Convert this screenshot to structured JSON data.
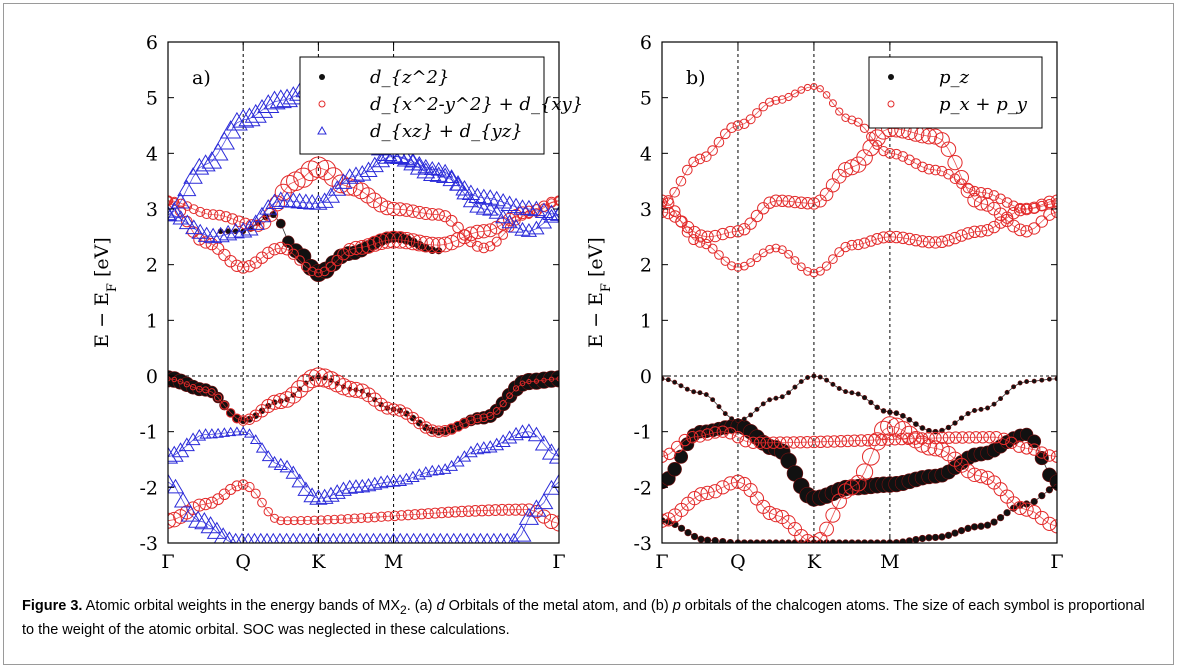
{
  "chart_data": [
    {
      "type": "scatter",
      "panel_label": "a)",
      "ylabel": "E − E_F [eV]",
      "ylim": [
        -3,
        6
      ],
      "yticks": [
        "6",
        "5",
        "4",
        "3",
        "2",
        "1",
        "0",
        "-1",
        "-2",
        "-3"
      ],
      "xticks": [
        "Γ",
        "Q",
        "K",
        "M",
        "Γ"
      ],
      "xtick_positions": [
        0,
        0.5,
        1,
        1.5,
        2.6
      ],
      "legend_position": "top-right",
      "series": [
        {
          "name": "d_{z^2}",
          "marker": "filled-circle",
          "color": "#000000",
          "bands": [
            {
              "x": [
                0,
                0.25,
                0.5,
                0.75,
                1,
                1.25,
                1.5,
                1.8,
                2.1,
                2.4,
                2.6
              ],
              "y": [
                -0.05,
                -0.25,
                -0.8,
                -0.45,
                -0.02,
                -0.25,
                -0.6,
                -1.0,
                -0.75,
                -0.1,
                -0.05
              ],
              "w": [
                0.95,
                0.7,
                0.3,
                0.2,
                0.15,
                0.15,
                0.2,
                0.35,
                0.7,
                0.95,
                0.95
              ]
            },
            {
              "x": [
                0.35,
                0.5,
                0.7,
                0.85,
                1,
                1.2,
                1.5,
                1.8
              ],
              "y": [
                2.6,
                2.6,
                2.9,
                2.25,
                1.85,
                2.2,
                2.5,
                2.25
              ],
              "w": [
                0.2,
                0.2,
                0.3,
                0.8,
                1.0,
                0.8,
                0.6,
                0.3
              ]
            }
          ]
        },
        {
          "name": "d_{x^2-y^2} + d_{xy}",
          "marker": "open-circle",
          "color": "#e32b2b",
          "bands": [
            {
              "x": [
                0,
                0.25,
                0.5,
                0.75,
                1,
                1.25,
                1.5,
                1.8,
                2.1,
                2.4,
                2.6
              ],
              "y": [
                -0.05,
                -0.25,
                -0.8,
                -0.45,
                -0.02,
                -0.25,
                -0.6,
                -1.0,
                -0.75,
                -0.1,
                -0.05
              ],
              "w": [
                0.1,
                0.2,
                0.4,
                0.7,
                0.9,
                0.7,
                0.5,
                0.5,
                0.3,
                0.1,
                0.1
              ]
            },
            {
              "x": [
                0,
                0.25,
                0.5,
                0.75,
                1,
                1.25,
                1.5,
                1.8,
                2.1,
                2.4,
                2.6
              ],
              "y": [
                3.15,
                2.4,
                1.95,
                2.3,
                1.85,
                2.3,
                2.45,
                2.35,
                2.6,
                2.95,
                3.15
              ],
              "w": [
                0.4,
                0.5,
                0.5,
                0.5,
                0.3,
                0.6,
                0.8,
                0.7,
                0.6,
                0.5,
                0.4
              ]
            },
            {
              "x": [
                0,
                0.3,
                0.6,
                0.85,
                1,
                1.2,
                1.5,
                1.8,
                2.1,
                2.4,
                2.6
              ],
              "y": [
                3.15,
                2.9,
                2.7,
                3.5,
                3.75,
                3.4,
                3.0,
                2.9,
                2.3,
                2.9,
                3.15
              ],
              "w": [
                0.3,
                0.4,
                0.5,
                0.9,
                1.0,
                0.8,
                0.6,
                0.5,
                0.4,
                0.3,
                0.3
              ]
            },
            {
              "x": [
                0,
                0.25,
                0.5,
                0.75,
                2.4,
                2.6
              ],
              "y": [
                -2.6,
                -2.3,
                -1.95,
                -2.6,
                -2.4,
                -2.65
              ],
              "w": [
                0.7,
                0.5,
                0.4,
                0.3,
                0.5,
                0.7
              ]
            }
          ]
        },
        {
          "name": "d_{xz} + d_{yz}",
          "marker": "open-triangle",
          "color": "#2b2bd9",
          "bands": [
            {
              "x": [
                0,
                0.25,
                0.5,
                0.75,
                1,
                1.25,
                1.5,
                1.8,
                2.1,
                2.4,
                2.6
              ],
              "y": [
                2.9,
                3.8,
                4.6,
                4.95,
                5.2,
                4.5,
                3.95,
                3.6,
                3.2,
                3.0,
                2.9
              ],
              "w": [
                0.7,
                0.8,
                0.9,
                0.9,
                0.8,
                0.8,
                0.8,
                0.7,
                0.7,
                0.7,
                0.7
              ]
            },
            {
              "x": [
                0,
                0.3,
                0.5,
                0.75,
                1,
                1.25,
                1.5,
                1.8,
                2.1,
                2.4,
                2.6
              ],
              "y": [
                2.9,
                2.5,
                2.6,
                3.15,
                3.1,
                3.6,
                3.95,
                3.7,
                3.0,
                2.6,
                2.9
              ],
              "w": [
                0.6,
                0.7,
                0.7,
                0.7,
                0.7,
                0.7,
                0.7,
                0.6,
                0.6,
                0.6,
                0.6
              ]
            },
            {
              "x": [
                0,
                0.25,
                0.5,
                0.75,
                1,
                1.25,
                1.5,
                1.8,
                2.1,
                2.4,
                2.6
              ],
              "y": [
                -1.45,
                -1.05,
                -1.0,
                -1.6,
                -2.2,
                -2.0,
                -1.9,
                -1.7,
                -1.3,
                -1.0,
                -1.45
              ],
              "w": [
                0.8,
                0.4,
                0.3,
                0.5,
                0.7,
                0.6,
                0.5,
                0.4,
                0.5,
                0.6,
                0.8
              ]
            },
            {
              "x": [
                0,
                0.2,
                0.45,
                0.7,
                2.3,
                2.45,
                2.6
              ],
              "y": [
                -1.9,
                -2.6,
                -3.0,
                -3.0,
                -3.0,
                -2.4,
                -1.9
              ],
              "w": [
                0.6,
                0.8,
                0.8,
                0.8,
                0.8,
                0.8,
                0.6
              ]
            }
          ]
        }
      ]
    },
    {
      "type": "scatter",
      "panel_label": "b)",
      "ylabel": "E − E_F [eV]",
      "ylim": [
        -3,
        6
      ],
      "yticks": [
        "6",
        "5",
        "4",
        "3",
        "2",
        "1",
        "0",
        "-1",
        "-2",
        "-3"
      ],
      "xticks": [
        "Γ",
        "Q",
        "K",
        "M",
        "Γ"
      ],
      "xtick_positions": [
        0,
        0.5,
        1,
        1.5,
        2.6
      ],
      "legend_position": "top-right",
      "series": [
        {
          "name": "p_z",
          "marker": "filled-circle",
          "color": "#000000",
          "bands": [
            {
              "x": [
                0,
                0.25,
                0.5,
                0.75,
                1,
                1.25,
                1.5,
                1.8,
                2.1,
                2.4,
                2.6
              ],
              "y": [
                -1.9,
                -1.0,
                -0.9,
                -1.3,
                -2.2,
                -2.0,
                -1.95,
                -1.8,
                -1.4,
                -1.05,
                -1.9
              ],
              "w": [
                0.8,
                0.7,
                0.8,
                0.9,
                0.9,
                0.9,
                0.9,
                0.8,
                0.8,
                0.7,
                0.8
              ]
            },
            {
              "x": [
                0,
                0.25,
                0.5,
                0.75,
                1,
                1.25,
                1.5,
                1.8,
                2.1,
                2.4,
                2.6
              ],
              "y": [
                -0.05,
                -0.3,
                -0.8,
                -0.4,
                0.0,
                -0.3,
                -0.65,
                -1.0,
                -0.6,
                -0.1,
                -0.05
              ],
              "w": [
                0.15,
                0.15,
                0.15,
                0.15,
                0.15,
                0.15,
                0.2,
                0.2,
                0.15,
                0.15,
                0.15
              ]
            },
            {
              "x": [
                0,
                0.3,
                0.5,
                0.75,
                1,
                1.25,
                1.5,
                1.8,
                2.1,
                2.4,
                2.6
              ],
              "y": [
                -2.6,
                -2.95,
                -3.0,
                -3.0,
                -3.0,
                -3.0,
                -3.0,
                -2.9,
                -2.7,
                -2.3,
                -2.0
              ],
              "w": [
                0.3,
                0.3,
                0.3,
                0.3,
                0.3,
                0.3,
                0.3,
                0.3,
                0.3,
                0.3,
                0.3
              ]
            }
          ]
        },
        {
          "name": "p_x + p_y",
          "marker": "open-circle",
          "color": "#e32b2b",
          "bands": [
            {
              "x": [
                0,
                0.25,
                0.5,
                0.75,
                1,
                1.25,
                1.5,
                1.8,
                2.1,
                2.4,
                2.6
              ],
              "y": [
                3.1,
                3.9,
                4.5,
                4.95,
                5.2,
                4.6,
                4.0,
                3.7,
                3.3,
                3.0,
                3.1
              ],
              "w": [
                0.4,
                0.4,
                0.4,
                0.3,
                0.2,
                0.3,
                0.4,
                0.4,
                0.4,
                0.4,
                0.4
              ]
            },
            {
              "x": [
                0,
                0.3,
                0.5,
                0.75,
                1,
                1.25,
                1.5,
                1.8,
                2.1,
                2.4,
                2.6
              ],
              "y": [
                2.95,
                2.5,
                2.6,
                3.15,
                3.1,
                3.75,
                4.45,
                4.3,
                3.1,
                2.6,
                2.95
              ],
              "w": [
                0.5,
                0.5,
                0.5,
                0.5,
                0.5,
                0.7,
                0.8,
                0.7,
                0.6,
                0.5,
                0.5
              ]
            },
            {
              "x": [
                0,
                0.25,
                0.5,
                0.75,
                1,
                1.25,
                1.5,
                1.8,
                2.1,
                2.4,
                2.6
              ],
              "y": [
                3.15,
                2.4,
                1.95,
                2.3,
                1.85,
                2.35,
                2.5,
                2.4,
                2.6,
                3.0,
                3.15
              ],
              "w": [
                0.5,
                0.4,
                0.3,
                0.3,
                0.3,
                0.4,
                0.5,
                0.5,
                0.5,
                0.5,
                0.5
              ]
            },
            {
              "x": [
                0,
                0.3,
                0.5,
                0.75,
                1,
                1.25,
                1.5,
                1.8,
                2.1,
                2.4,
                2.6
              ],
              "y": [
                -2.6,
                -2.1,
                -1.9,
                -2.5,
                -3.0,
                -2.0,
                -0.9,
                -1.3,
                -1.8,
                -2.4,
                -2.7
              ],
              "w": [
                0.6,
                0.6,
                0.6,
                0.6,
                0.6,
                0.7,
                0.9,
                0.7,
                0.6,
                0.6,
                0.6
              ]
            },
            {
              "x": [
                0,
                0.2,
                0.4,
                0.6,
                2.2,
                2.4,
                2.6
              ],
              "y": [
                -1.45,
                -1.1,
                -1.0,
                -1.2,
                -1.1,
                -1.3,
                -1.45
              ],
              "w": [
                0.5,
                0.5,
                0.5,
                0.5,
                0.5,
                0.5,
                0.5
              ]
            }
          ]
        }
      ]
    }
  ],
  "caption": {
    "label": "Figure 3.",
    "text_part1": " Atomic orbital weights in the energy bands of MX",
    "subscript": "2",
    "text_part2": ". (a) ",
    "italic_d": "d",
    "text_part3": " Orbitals of the metal atom, and (b) ",
    "italic_p": "p",
    "text_part4": " orbitals of the chalcogen atoms. The size of each symbol is proportional to the weight of the atomic orbital. SOC was neglected in these calculations."
  }
}
